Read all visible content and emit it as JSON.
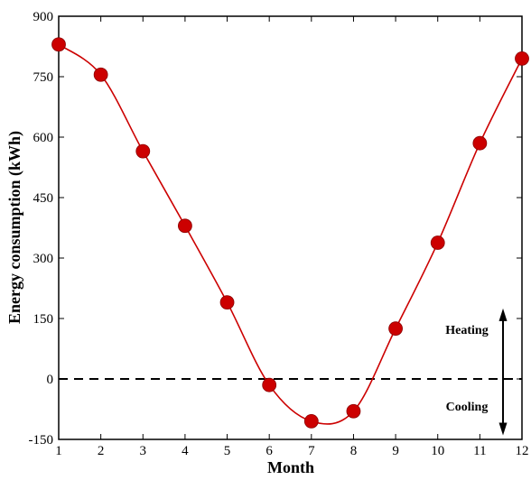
{
  "chart_data": {
    "type": "line",
    "title": "",
    "xlabel": "Month",
    "ylabel": "Energy consumption (kWh)",
    "x": [
      1,
      2,
      3,
      4,
      5,
      6,
      7,
      8,
      9,
      10,
      11,
      12
    ],
    "series": [
      {
        "values": [
          830,
          755,
          565,
          380,
          190,
          -15,
          -105,
          -80,
          125,
          338,
          585,
          795
        ]
      }
    ],
    "xlim": [
      1,
      12
    ],
    "ylim": [
      -150,
      900
    ],
    "x_ticks": [
      "1",
      "2",
      "3",
      "4",
      "5",
      "6",
      "7",
      "8",
      "9",
      "10",
      "11",
      "12"
    ],
    "y_ticks": [
      "-150",
      "0",
      "150",
      "300",
      "450",
      "600",
      "750",
      "900"
    ],
    "reference_line": {
      "y": 0,
      "style": "dashed"
    },
    "annotations": {
      "heating": "Heating",
      "cooling": "Cooling"
    },
    "grid": false,
    "colors": {
      "series": "#cc0000",
      "marker": "#cc0000",
      "axis": "#000000"
    }
  }
}
